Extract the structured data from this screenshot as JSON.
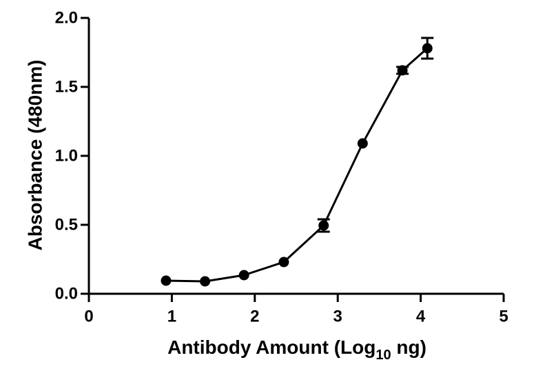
{
  "chart_data": {
    "type": "line",
    "title": "",
    "xlabel": "Antibody Amount (Log",
    "xlabel_subscript": "10",
    "xlabel_suffix": " ng)",
    "ylabel": "Absorbance (480nm)",
    "xlim": [
      0,
      5
    ],
    "ylim": [
      0,
      2
    ],
    "x_ticks": [
      0,
      1,
      2,
      3,
      4,
      5
    ],
    "x_tick_labels": [
      "0",
      "1",
      "2",
      "3",
      "4",
      "5"
    ],
    "y_ticks": [
      0,
      0.5,
      1,
      1.5,
      2
    ],
    "y_tick_labels": [
      "0.0",
      "0.5",
      "1.0",
      "1.5",
      "2.0"
    ],
    "grid": false,
    "series": [
      {
        "color": "#000000",
        "marker": "circle",
        "x": [
          0.93,
          1.4,
          1.87,
          2.35,
          2.83,
          3.3,
          3.78,
          4.08
        ],
        "y": [
          0.095,
          0.09,
          0.135,
          0.23,
          0.495,
          1.09,
          1.62,
          1.78
        ],
        "error": [
          0,
          0,
          0,
          0,
          0.045,
          0,
          0.025,
          0.075
        ]
      }
    ]
  }
}
